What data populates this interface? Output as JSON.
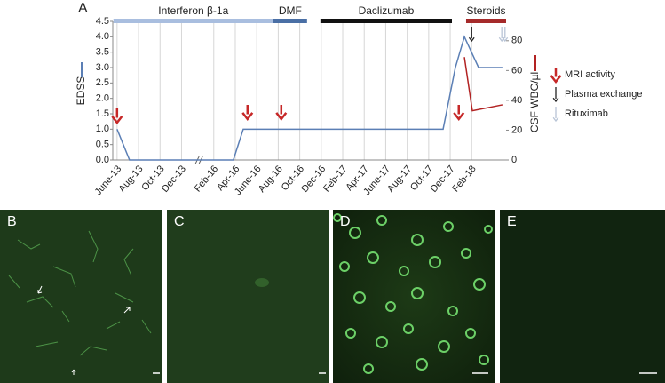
{
  "chart_data": {
    "type": "line",
    "panel_label": "A",
    "ylabel": "EDSS",
    "y2label": "CSF WBC/µl",
    "xlim": [
      -0.2,
      18.1
    ],
    "xticks": [
      {
        "value": 0,
        "label": "June-13"
      },
      {
        "value": 1,
        "label": "Aug-13"
      },
      {
        "value": 2,
        "label": "Oct-13"
      },
      {
        "value": 3,
        "label": "Dec-13"
      },
      {
        "value": 4.5,
        "label": "Feb-16"
      },
      {
        "value": 5.5,
        "label": "Apr-16"
      },
      {
        "value": 6.5,
        "label": "June-16"
      },
      {
        "value": 7.5,
        "label": "Aug-16"
      },
      {
        "value": 8.5,
        "label": "Oct-16"
      },
      {
        "value": 9.5,
        "label": "Dec-16"
      },
      {
        "value": 10.5,
        "label": "Feb-17"
      },
      {
        "value": 11.5,
        "label": "Apr-17"
      },
      {
        "value": 12.5,
        "label": "June-17"
      },
      {
        "value": 13.5,
        "label": "Aug-17"
      },
      {
        "value": 14.5,
        "label": "Oct-17"
      },
      {
        "value": 15.5,
        "label": "Dec-17"
      },
      {
        "value": 16.5,
        "label": "Feb-18"
      }
    ],
    "ylim": [
      0,
      4.5
    ],
    "yticks": [
      {
        "value": 0,
        "label": "0.0"
      },
      0.5,
      {
        "value": 1,
        "label": "1.0"
      },
      1.5,
      {
        "value": 2,
        "label": "2.0"
      },
      2.5,
      {
        "value": 3,
        "label": "3.0"
      },
      3.5,
      {
        "value": 4,
        "label": "4.0"
      },
      4.5
    ],
    "y2lim": [
      0,
      93
    ],
    "y2ticks": [
      0,
      20,
      40,
      60,
      80
    ],
    "grid": true,
    "series": [
      {
        "name": "EDSS",
        "color": "#5b7fb5",
        "x": [
          0,
          0.58,
          5.41,
          5.87,
          15.17,
          15.74,
          16.16,
          16.82,
          17.93
        ],
        "values": [
          1.0,
          0,
          0,
          1.0,
          1.0,
          3.0,
          4.0,
          3.0,
          3.0
        ]
      },
      {
        "name": "CSF WBC/µl",
        "color": "#b22222",
        "axis": "y2",
        "x": [
          16.16,
          16.53,
          17.93
        ],
        "values": [
          69,
          33,
          37
        ]
      }
    ],
    "events": [
      {
        "name": "MRI activity",
        "color": "#c62828",
        "x": [
          0,
          6.07,
          7.64,
          15.9
        ]
      },
      {
        "name": "Plasma exchange",
        "color": "#222222",
        "x": [
          16.5
        ]
      },
      {
        "name": "Rituximab",
        "color": "#b8c4d6",
        "x": [
          17.9,
          18.05
        ]
      }
    ],
    "therapies": [
      {
        "label": "Interferon β-1a",
        "color": "#a9bedf",
        "start": -0.17,
        "end": 7.27
      },
      {
        "label": "DMF",
        "color": "#4a6fa5",
        "start": 7.27,
        "end": 8.84
      },
      {
        "label": "Daclizumab",
        "color": "#111111",
        "start": 9.46,
        "end": 15.58
      },
      {
        "label": "Steroids",
        "color": "#a52a2a",
        "start": 16.24,
        "end": 18.1
      }
    ]
  },
  "panels": [
    {
      "label": "B"
    },
    {
      "label": "C"
    },
    {
      "label": "D"
    },
    {
      "label": "E"
    }
  ]
}
